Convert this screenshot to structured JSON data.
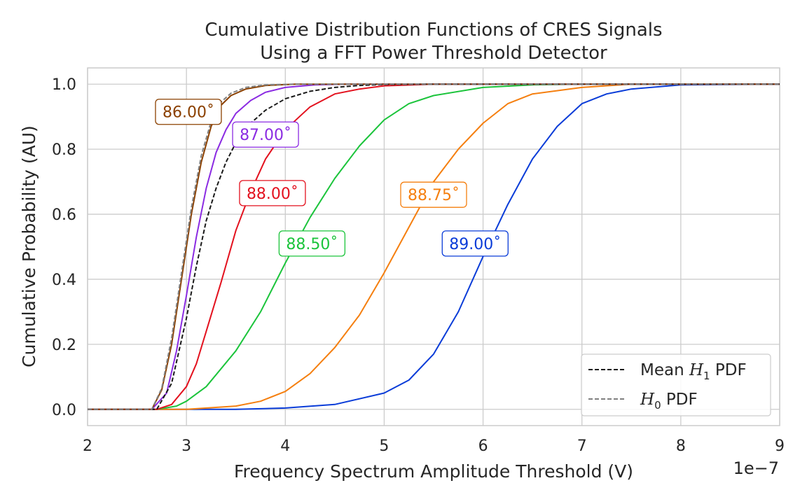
{
  "chart_data": {
    "type": "line",
    "title": [
      "Cumulative Distribution Functions of CRES Signals",
      "Using a FFT Power Threshold Detector"
    ],
    "xlabel": "Frequency Spectrum Amplitude Threshold (V)",
    "ylabel": "Cumulative Probability (AU)",
    "x_scale_label": "1e−7",
    "xlim": [
      2,
      9
    ],
    "ylim": [
      -0.05,
      1.05
    ],
    "grid": true,
    "x_ticks": [
      2,
      3,
      4,
      5,
      6,
      7,
      8,
      9
    ],
    "x_tick_labels": [
      "2",
      "3",
      "4",
      "5",
      "6",
      "7",
      "8",
      "9"
    ],
    "y_ticks": [
      0.0,
      0.2,
      0.4,
      0.6,
      0.8,
      1.0
    ],
    "y_tick_labels": [
      "0.0",
      "0.2",
      "0.4",
      "0.6",
      "0.8",
      "1.0"
    ],
    "legend_position": "bottom-right",
    "legend": [
      {
        "label": "Mean",
        "math": "H",
        "sub": "1",
        "suffix": "PDF",
        "color": "#1a1a1a",
        "dash": "dashed"
      },
      {
        "label": "",
        "math": "H",
        "sub": "0",
        "suffix": "PDF",
        "color": "#808080",
        "dash": "dashed"
      }
    ],
    "series": [
      {
        "label": "89.00˚",
        "color": "#0a3cd8",
        "dash": "solid",
        "x": [
          2.0,
          3.0,
          3.5,
          4.0,
          4.5,
          5.0,
          5.25,
          5.5,
          5.75,
          6.0,
          6.25,
          6.5,
          6.75,
          7.0,
          7.25,
          7.5,
          8.0,
          9.0
        ],
        "y": [
          0.0,
          0.0,
          0.0,
          0.004,
          0.015,
          0.05,
          0.09,
          0.17,
          0.3,
          0.47,
          0.63,
          0.77,
          0.87,
          0.94,
          0.97,
          0.985,
          0.998,
          1.0
        ]
      },
      {
        "label": "88.75˚",
        "color": "#f57f0f",
        "dash": "solid",
        "x": [
          2.0,
          3.0,
          3.5,
          3.75,
          4.0,
          4.25,
          4.5,
          4.75,
          5.0,
          5.25,
          5.5,
          5.75,
          6.0,
          6.25,
          6.5,
          7.0,
          7.5,
          9.0
        ],
        "y": [
          0.0,
          0.0,
          0.01,
          0.025,
          0.055,
          0.11,
          0.19,
          0.29,
          0.42,
          0.56,
          0.7,
          0.8,
          0.88,
          0.94,
          0.97,
          0.99,
          1.0,
          1.0
        ]
      },
      {
        "label": "88.50˚",
        "color": "#1bc43b",
        "dash": "solid",
        "x": [
          2.0,
          2.7,
          2.9,
          3.0,
          3.2,
          3.5,
          3.75,
          4.0,
          4.25,
          4.5,
          4.75,
          5.0,
          5.25,
          5.5,
          6.0,
          6.5,
          7.0,
          9.0
        ],
        "y": [
          0.0,
          0.0,
          0.01,
          0.025,
          0.07,
          0.18,
          0.3,
          0.45,
          0.59,
          0.71,
          0.81,
          0.89,
          0.94,
          0.965,
          0.99,
          0.998,
          1.0,
          1.0
        ]
      },
      {
        "label": "88.00˚",
        "color": "#e3111e",
        "dash": "solid",
        "x": [
          2.0,
          2.7,
          2.85,
          3.0,
          3.1,
          3.2,
          3.35,
          3.5,
          3.65,
          3.8,
          4.0,
          4.25,
          4.5,
          4.75,
          5.0,
          5.5,
          9.0
        ],
        "y": [
          0.0,
          0.0,
          0.015,
          0.07,
          0.14,
          0.24,
          0.39,
          0.55,
          0.67,
          0.77,
          0.86,
          0.93,
          0.97,
          0.985,
          0.995,
          1.0,
          1.0
        ]
      },
      {
        "label": "87.00˚",
        "color": "#8b2be2",
        "dash": "solid",
        "x": [
          2.0,
          2.65,
          2.8,
          2.9,
          3.0,
          3.1,
          3.2,
          3.3,
          3.4,
          3.5,
          3.65,
          3.8,
          4.0,
          4.3,
          4.6,
          9.0
        ],
        "y": [
          0.0,
          0.0,
          0.05,
          0.18,
          0.35,
          0.53,
          0.68,
          0.79,
          0.86,
          0.91,
          0.95,
          0.975,
          0.99,
          0.998,
          1.0,
          1.0
        ]
      },
      {
        "label": "86.00˚",
        "color": "#8b4000",
        "dash": "solid",
        "x": [
          2.0,
          2.65,
          2.75,
          2.85,
          2.95,
          3.05,
          3.15,
          3.25,
          3.35,
          3.45,
          3.6,
          3.8,
          4.1,
          9.0
        ],
        "y": [
          0.0,
          0.0,
          0.06,
          0.2,
          0.4,
          0.6,
          0.76,
          0.87,
          0.935,
          0.965,
          0.985,
          0.996,
          1.0,
          1.0
        ]
      },
      {
        "label": "Mean H1 PDF",
        "color": "#1a1a1a",
        "dash": "dashed",
        "x": [
          2.0,
          2.7,
          2.85,
          3.0,
          3.1,
          3.2,
          3.3,
          3.4,
          3.5,
          3.65,
          3.8,
          4.0,
          4.25,
          4.5,
          4.75,
          5.0,
          5.5,
          9.0
        ],
        "y": [
          0.0,
          0.0,
          0.08,
          0.28,
          0.44,
          0.58,
          0.68,
          0.76,
          0.82,
          0.88,
          0.92,
          0.955,
          0.978,
          0.99,
          0.996,
          0.999,
          1.0,
          1.0
        ]
      },
      {
        "label": "H0 PDF",
        "color": "#808080",
        "dash": "dashed",
        "x": [
          2.0,
          2.65,
          2.75,
          2.85,
          2.95,
          3.05,
          3.15,
          3.25,
          3.35,
          3.45,
          3.6,
          3.8,
          4.1,
          9.0
        ],
        "y": [
          0.0,
          0.0,
          0.065,
          0.22,
          0.42,
          0.62,
          0.78,
          0.885,
          0.945,
          0.972,
          0.99,
          0.998,
          1.0,
          1.0
        ]
      }
    ],
    "annotations": [
      {
        "text": "86.00˚",
        "x": 3.02,
        "y": 0.915,
        "color": "#8b4000"
      },
      {
        "text": "87.00˚",
        "x": 3.8,
        "y": 0.845,
        "color": "#8b2be2"
      },
      {
        "text": "88.00˚",
        "x": 3.87,
        "y": 0.665,
        "color": "#e3111e"
      },
      {
        "text": "88.50˚",
        "x": 4.27,
        "y": 0.51,
        "color": "#1bc43b"
      },
      {
        "text": "88.75˚",
        "x": 5.5,
        "y": 0.66,
        "color": "#f57f0f"
      },
      {
        "text": "89.00˚",
        "x": 5.92,
        "y": 0.51,
        "color": "#0a3cd8"
      }
    ]
  }
}
